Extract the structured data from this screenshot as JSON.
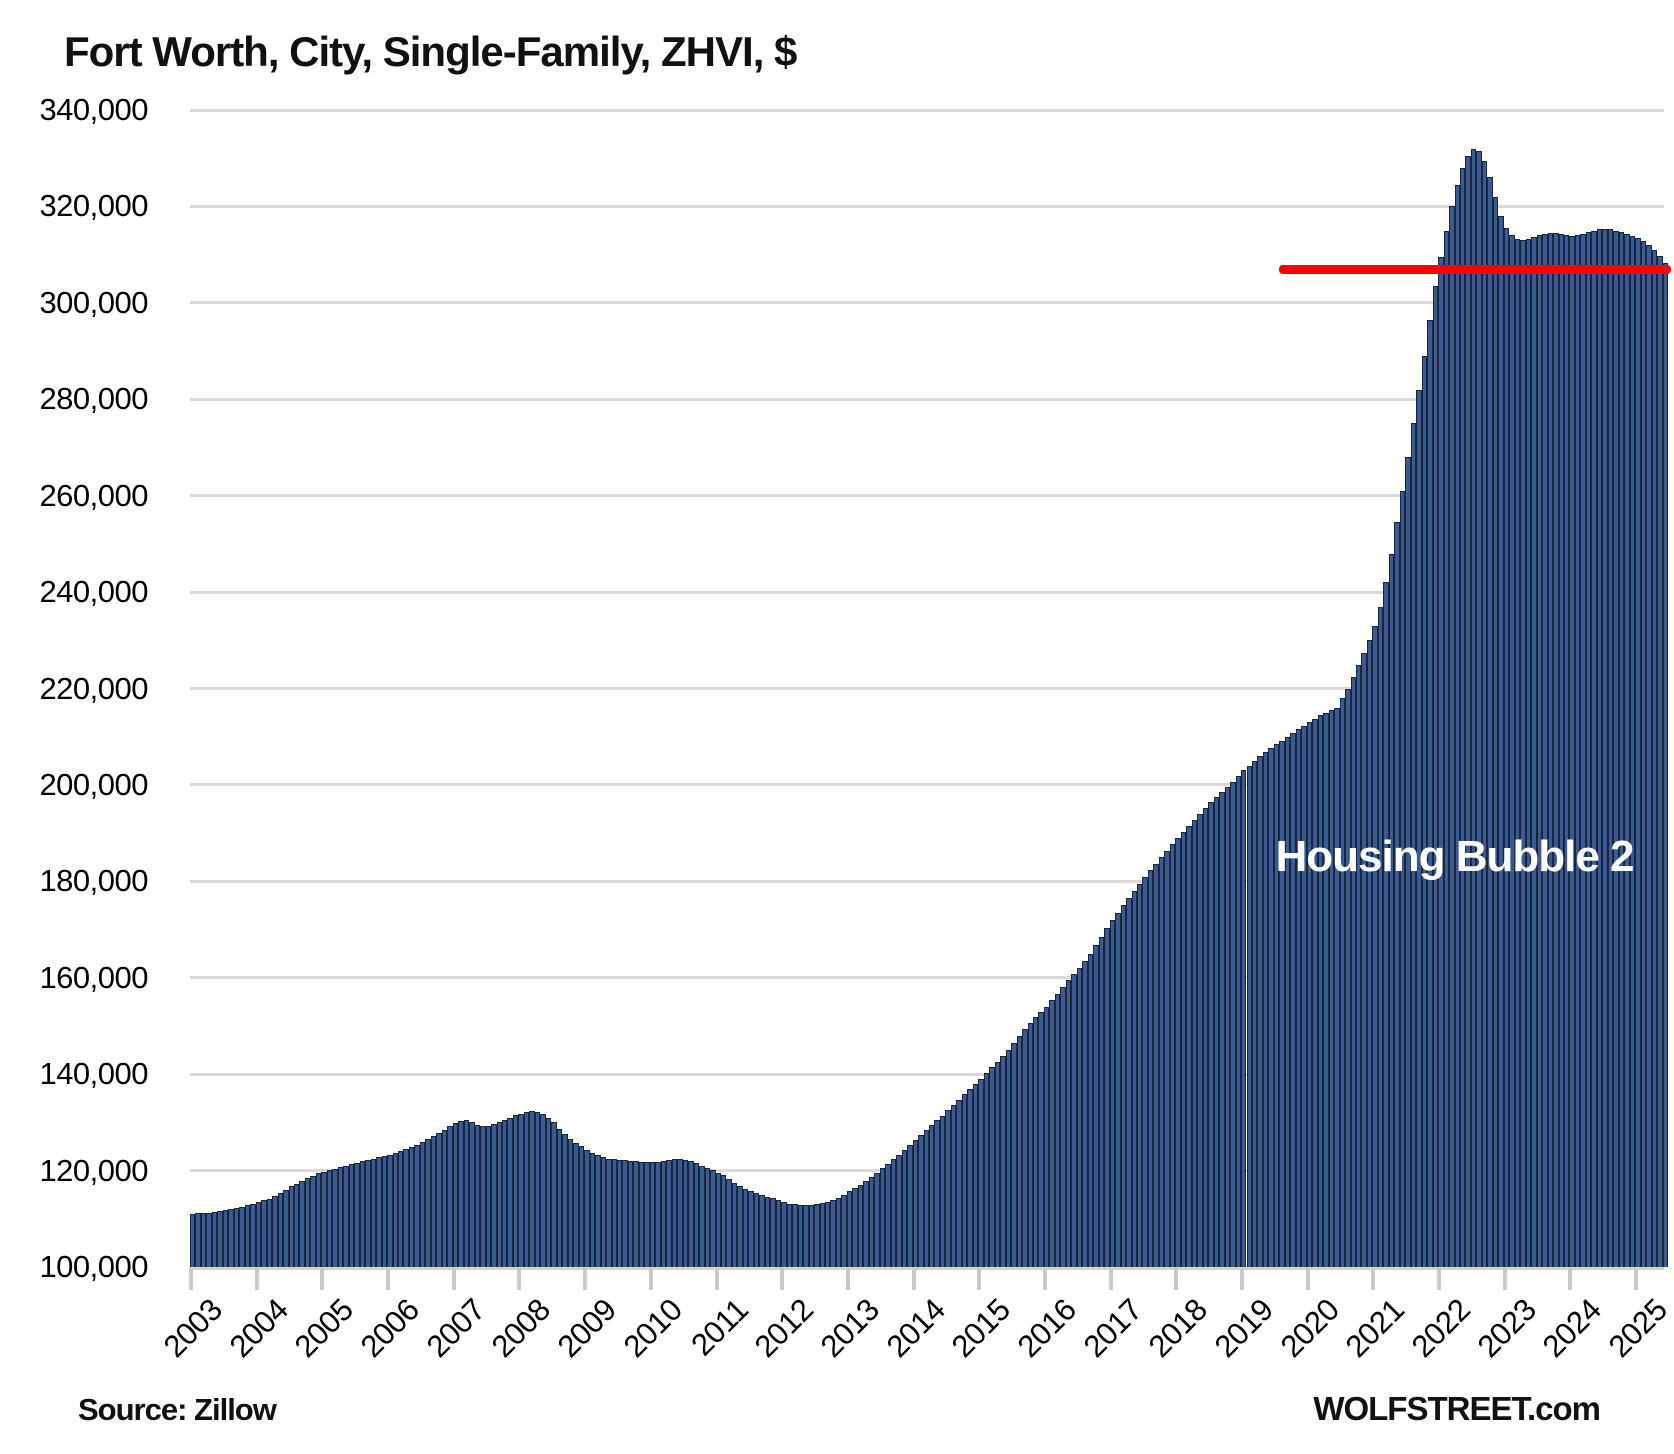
{
  "title": "Fort Worth, City, Single-Family, ZHVI, $",
  "source_label": "Source: Zillow",
  "watermark": "WOLFSTREET.com",
  "colors": {
    "bar_fill": "#3a5a94",
    "bar_border": "#1b263c",
    "grid": "#d9d9d9",
    "reference_line": "#ff0000",
    "annotation_text": "#ffffff",
    "text": "#111111"
  },
  "chart_data": {
    "type": "bar",
    "title": "Fort Worth, City, Single-Family, ZHVI, $",
    "unit": "USD",
    "x_start": "2003-01",
    "frequency": "monthly",
    "grid": "horizontal",
    "legend": "none",
    "ylim": [
      100000,
      340000
    ],
    "y_tick_step": 20000,
    "y_tick_labels": [
      "340,000",
      "320,000",
      "300,000",
      "280,000",
      "260,000",
      "240,000",
      "220,000",
      "200,000",
      "180,000",
      "160,000",
      "140,000",
      "120,000",
      "100,000"
    ],
    "x_tick_labels": [
      "2003",
      "2004",
      "2005",
      "2006",
      "2007",
      "2008",
      "2009",
      "2010",
      "2011",
      "2012",
      "2013",
      "2014",
      "2015",
      "2016",
      "2017",
      "2018",
      "2019",
      "2020",
      "2021",
      "2022",
      "2023",
      "2024",
      "2025"
    ],
    "values": [
      111000,
      111100,
      111200,
      111300,
      111500,
      111700,
      111900,
      112100,
      112300,
      112500,
      112800,
      113100,
      113500,
      113800,
      114200,
      114700,
      115300,
      116000,
      116700,
      117300,
      117900,
      118400,
      118900,
      119400,
      119800,
      120100,
      120400,
      120700,
      121000,
      121300,
      121600,
      121900,
      122200,
      122500,
      122800,
      123100,
      123300,
      123600,
      124000,
      124400,
      124800,
      125400,
      126000,
      126600,
      127200,
      127800,
      128500,
      129200,
      129800,
      130200,
      130400,
      130000,
      129500,
      129200,
      129300,
      129600,
      130000,
      130500,
      131000,
      131500,
      131800,
      132100,
      132300,
      132200,
      131800,
      131000,
      130000,
      128600,
      127500,
      126500,
      125700,
      125000,
      124300,
      123700,
      123200,
      122800,
      122500,
      122300,
      122200,
      122100,
      122000,
      121900,
      121800,
      121800,
      121700,
      121800,
      122000,
      122200,
      122400,
      122400,
      122200,
      121900,
      121500,
      121000,
      120600,
      120200,
      119600,
      119000,
      118300,
      117500,
      116800,
      116200,
      115700,
      115300,
      114900,
      114600,
      114400,
      113900,
      113400,
      113100,
      113000,
      112900,
      112900,
      112900,
      113000,
      113200,
      113500,
      113900,
      114400,
      115000,
      115700,
      116300,
      117000,
      117800,
      118700,
      119600,
      120500,
      121400,
      122300,
      123300,
      124300,
      125300,
      126400,
      127400,
      128400,
      129400,
      130400,
      131400,
      132500,
      133600,
      134700,
      135800,
      136900,
      138000,
      139000,
      140200,
      141400,
      142600,
      143800,
      145100,
      146500,
      147900,
      149300,
      150700,
      151800,
      152900,
      154000,
      155300,
      156700,
      158100,
      159500,
      160800,
      162000,
      163500,
      165000,
      166800,
      168500,
      170300,
      172000,
      173500,
      175000,
      176500,
      178000,
      179500,
      181000,
      182300,
      183600,
      185000,
      186300,
      187700,
      189000,
      190300,
      191500,
      192800,
      194000,
      195300,
      196500,
      197500,
      198500,
      199600,
      200700,
      201800,
      203000,
      204000,
      205000,
      205900,
      206800,
      207700,
      208500,
      209200,
      209900,
      210700,
      211500,
      212300,
      213000,
      213700,
      214400,
      215000,
      215500,
      216000,
      218000,
      220000,
      222300,
      224800,
      227400,
      230100,
      233000,
      237000,
      242000,
      248000,
      254500,
      261000,
      268000,
      275000,
      282000,
      289000,
      296500,
      303500,
      309500,
      315000,
      320000,
      324500,
      328000,
      330500,
      332000,
      331500,
      329500,
      326000,
      322000,
      318000,
      315500,
      314000,
      313200,
      313000,
      313200,
      313600,
      314000,
      314300,
      314500,
      314500,
      314300,
      314000,
      313800,
      314000,
      314300,
      314700,
      315000,
      315300,
      315400,
      315300,
      315000,
      314700,
      314300,
      313900,
      313400,
      312800,
      312000,
      311000,
      309800,
      308300
    ],
    "reference_line": {
      "value": 307000,
      "start_month_index": 199,
      "color": "#ff0000"
    },
    "annotation": {
      "text": "Housing Bubble 2",
      "anchor_month_index": 231,
      "anchor_value": 185000,
      "color": "#ffffff"
    }
  }
}
